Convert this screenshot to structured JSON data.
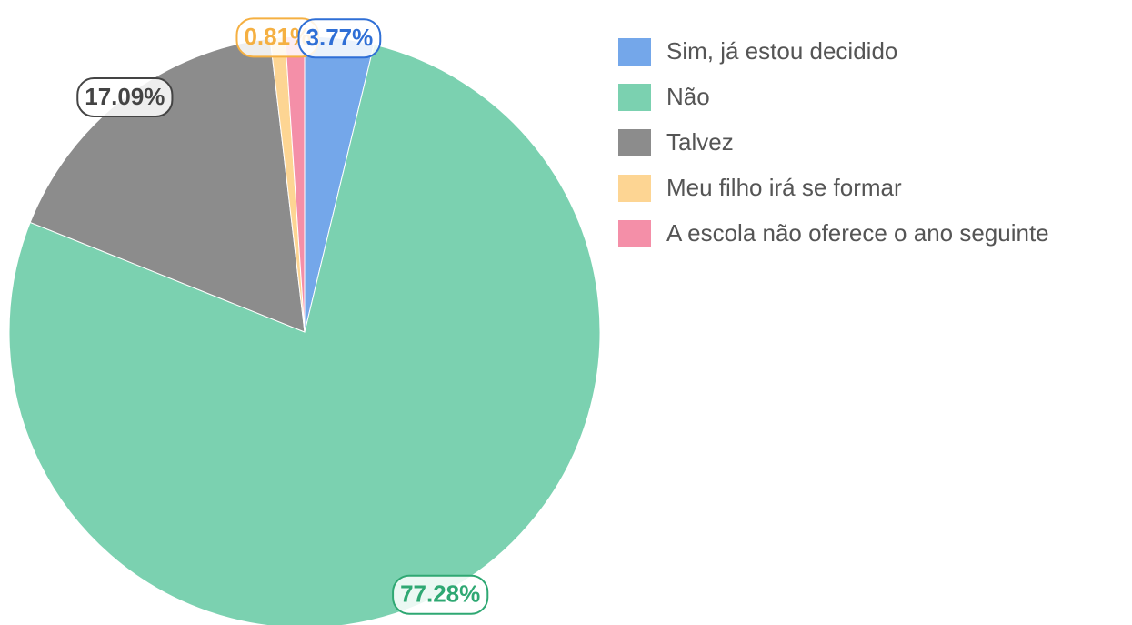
{
  "chart_data": {
    "type": "pie",
    "categories": [
      "Sim, já estou decidido",
      "Não",
      "Talvez",
      "Meu filho irá se formar",
      "A escola não oferece o ano seguinte"
    ],
    "values": [
      3.77,
      77.28,
      17.09,
      0.81,
      1.05
    ],
    "value_labels": [
      "3.77%",
      "77.28%",
      "17.09%",
      "0.81%",
      null
    ],
    "colors": [
      "#74a7ea",
      "#7bd1b0",
      "#8c8c8c",
      "#fdd593",
      "#f48fa8"
    ],
    "label_colors": [
      "#2f6fd6",
      "#2fa873",
      "#444444",
      "#f5b042",
      "#e8607f"
    ],
    "legend": "right"
  }
}
